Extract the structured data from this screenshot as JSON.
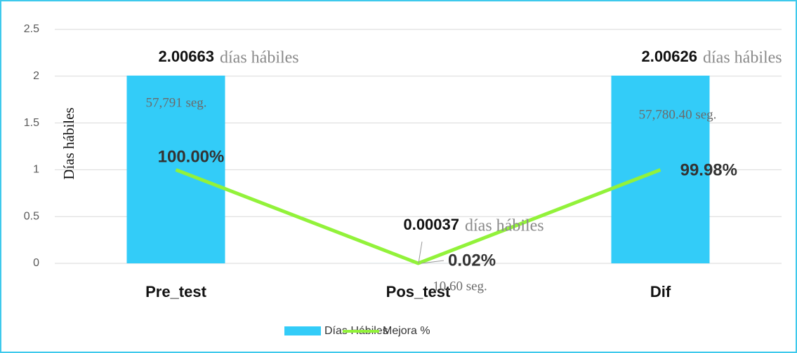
{
  "chart_data": {
    "type": "bar_line",
    "categories": [
      "Pre_test",
      "Pos_test",
      "Dif"
    ],
    "y_axis_label": "Días hábiles",
    "series": [
      {
        "name": "Días Hábiles",
        "type": "bar",
        "color": "#33ccf8",
        "values": [
          2.00663,
          0.00037,
          2.00626
        ]
      },
      {
        "name": "Mejora %",
        "type": "line",
        "color": "#92f23a",
        "values": [
          1,
          0.0002,
          0.9998
        ],
        "value_labels": [
          "100.00%",
          "0.02%",
          "99.98%"
        ]
      }
    ],
    "unit_labels": [
      "días hábiles",
      "días hábiles",
      "días hábiles"
    ],
    "seconds_labels": [
      "57,791 seg.",
      "10.60 seg.",
      "57,780.40 seg."
    ],
    "ylim": [
      0,
      2.5
    ],
    "yticks": [
      0,
      0.5,
      1,
      1.5,
      2,
      2.5
    ],
    "grid": true,
    "legend": "bottom"
  }
}
